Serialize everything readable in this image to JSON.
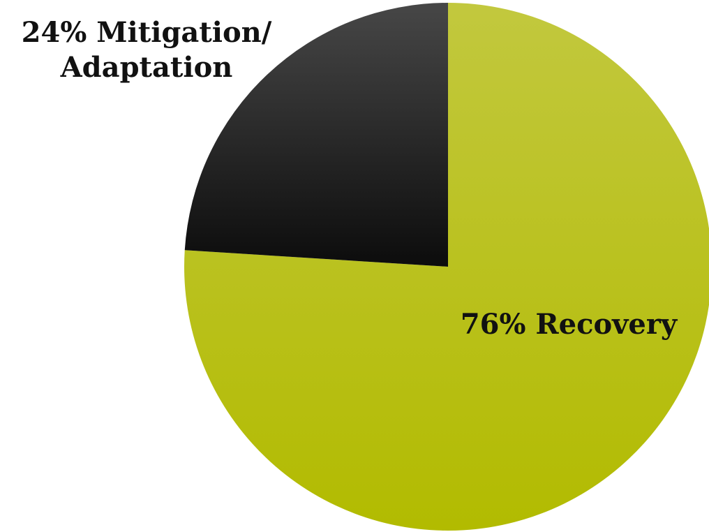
{
  "chart_data": {
    "type": "pie",
    "title": "",
    "slices": [
      {
        "label_lines": [
          "76% Recovery"
        ],
        "value": 76,
        "color_top": "#c2c83e",
        "color_bottom": "#b2bb00"
      },
      {
        "label_lines": [
          "24% Mitigation/",
          "Adaptation"
        ],
        "value": 24,
        "color_top": "#474747",
        "color_bottom": "#0c0c0c"
      }
    ],
    "legend": "none"
  }
}
